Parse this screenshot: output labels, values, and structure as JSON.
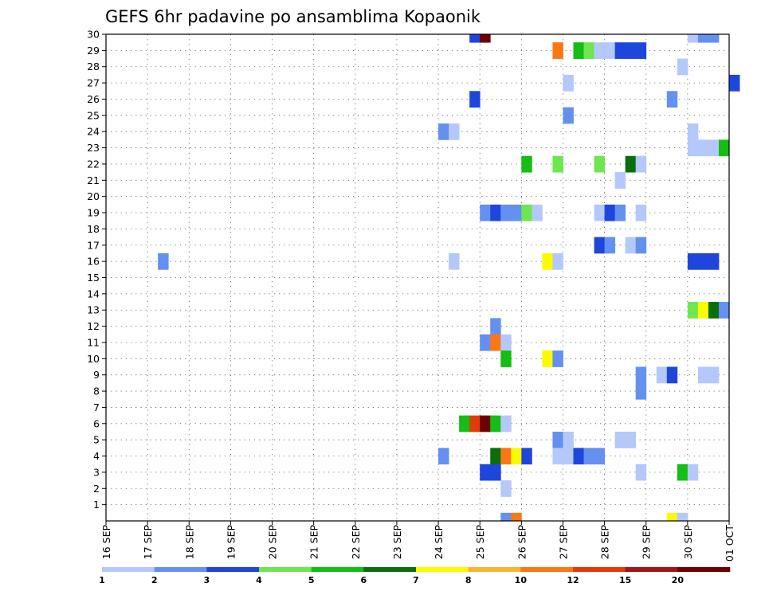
{
  "chart_data": {
    "type": "heatmap",
    "title": "GEFS 6hr padavine po ansamblima Kopaonik",
    "xlabel": "",
    "ylabel": "",
    "x_tick_labels": [
      "16 SEP",
      "17 SEP",
      "18 SEP",
      "19 SEP",
      "20 SEP",
      "21 SEP",
      "22 SEP",
      "23 SEP",
      "24 SEP",
      "25 SEP",
      "26 SEP",
      "27 SEP",
      "28 SEP",
      "29 SEP",
      "30 SEP",
      "01 OCT"
    ],
    "x_range_days": [
      0,
      15
    ],
    "time_step_hours": 6,
    "y_tick_labels": [
      "1",
      "2",
      "3",
      "4",
      "5",
      "6",
      "7",
      "8",
      "9",
      "10",
      "11",
      "12",
      "13",
      "14",
      "15",
      "16",
      "17",
      "18",
      "19",
      "20",
      "21",
      "22",
      "23",
      "24",
      "25",
      "26",
      "27",
      "28",
      "29",
      "30"
    ],
    "y_range": [
      0,
      30
    ],
    "grid": true,
    "legend": {
      "placement": "bottom",
      "boundaries": [
        "1",
        "2",
        "3",
        "4",
        "5",
        "6",
        "7",
        "8",
        "10",
        "12",
        "15",
        "20"
      ],
      "colors": [
        "#b4c8fa",
        "#6490f0",
        "#1e46dc",
        "#6ee650",
        "#14be14",
        "#0a6e0a",
        "#fafa00",
        "#fab432",
        "#fa7814",
        "#e03c0a",
        "#a01414",
        "#6e0000"
      ]
    },
    "cells_note": "each cell: [day offset from 16 SEP 00Z, ensemble member row, color class 0-11]",
    "cells": [
      [
        8.75,
        30,
        2
      ],
      [
        9.0,
        30,
        11
      ],
      [
        14.0,
        30,
        0
      ],
      [
        14.25,
        30,
        1
      ],
      [
        14.5,
        30,
        1
      ],
      [
        10.75,
        29,
        8
      ],
      [
        11.25,
        29,
        4
      ],
      [
        11.5,
        29,
        3
      ],
      [
        11.75,
        29,
        0
      ],
      [
        12.0,
        29,
        0
      ],
      [
        12.25,
        29,
        2
      ],
      [
        12.5,
        29,
        2
      ],
      [
        12.75,
        29,
        2
      ],
      [
        13.75,
        28,
        0
      ],
      [
        11.0,
        27,
        0
      ],
      [
        15.0,
        27,
        2
      ],
      [
        8.75,
        26,
        2
      ],
      [
        13.5,
        26,
        1
      ],
      [
        11.0,
        25,
        1
      ],
      [
        8.0,
        24,
        1
      ],
      [
        8.25,
        24,
        0
      ],
      [
        14.0,
        24,
        0
      ],
      [
        14.0,
        23,
        0
      ],
      [
        14.25,
        23,
        0
      ],
      [
        14.5,
        23,
        0
      ],
      [
        14.75,
        23,
        4
      ],
      [
        10.0,
        22,
        4
      ],
      [
        10.75,
        22,
        3
      ],
      [
        11.75,
        22,
        3
      ],
      [
        12.5,
        22,
        5
      ],
      [
        12.75,
        22,
        0
      ],
      [
        12.25,
        21,
        0
      ],
      [
        9.0,
        19,
        1
      ],
      [
        9.25,
        19,
        2
      ],
      [
        9.5,
        19,
        1
      ],
      [
        9.75,
        19,
        1
      ],
      [
        10.0,
        19,
        3
      ],
      [
        10.25,
        19,
        0
      ],
      [
        11.75,
        19,
        0
      ],
      [
        12.0,
        19,
        2
      ],
      [
        12.25,
        19,
        1
      ],
      [
        12.75,
        19,
        0
      ],
      [
        11.75,
        17,
        2
      ],
      [
        12.0,
        17,
        1
      ],
      [
        12.5,
        17,
        0
      ],
      [
        12.75,
        17,
        1
      ],
      [
        1.25,
        16,
        1
      ],
      [
        8.25,
        16,
        0
      ],
      [
        10.5,
        16,
        6
      ],
      [
        10.75,
        16,
        0
      ],
      [
        14.0,
        16,
        2
      ],
      [
        14.25,
        16,
        2
      ],
      [
        14.5,
        16,
        2
      ],
      [
        14.0,
        13,
        3
      ],
      [
        14.25,
        13,
        6
      ],
      [
        14.5,
        13,
        5
      ],
      [
        14.75,
        13,
        1
      ],
      [
        9.25,
        12,
        1
      ],
      [
        9.0,
        11,
        1
      ],
      [
        9.25,
        11,
        8
      ],
      [
        9.5,
        11,
        0
      ],
      [
        9.5,
        10,
        4
      ],
      [
        10.5,
        10,
        6
      ],
      [
        10.75,
        10,
        1
      ],
      [
        12.75,
        9,
        1
      ],
      [
        13.25,
        9,
        0
      ],
      [
        13.5,
        9,
        2
      ],
      [
        14.25,
        9,
        0
      ],
      [
        14.5,
        9,
        0
      ],
      [
        12.75,
        8,
        1
      ],
      [
        8.5,
        6,
        4
      ],
      [
        8.75,
        6,
        9
      ],
      [
        9.0,
        6,
        11
      ],
      [
        9.25,
        6,
        4
      ],
      [
        9.5,
        6,
        0
      ],
      [
        10.75,
        5,
        1
      ],
      [
        11.0,
        5,
        0
      ],
      [
        12.25,
        5,
        0
      ],
      [
        12.5,
        5,
        0
      ],
      [
        8.0,
        4,
        1
      ],
      [
        9.25,
        4,
        5
      ],
      [
        9.5,
        4,
        8
      ],
      [
        9.75,
        4,
        6
      ],
      [
        10.0,
        4,
        2
      ],
      [
        10.75,
        4,
        0
      ],
      [
        11.0,
        4,
        0
      ],
      [
        11.25,
        4,
        2
      ],
      [
        11.5,
        4,
        1
      ],
      [
        11.75,
        4,
        1
      ],
      [
        9.0,
        3,
        2
      ],
      [
        9.25,
        3,
        2
      ],
      [
        12.75,
        3,
        0
      ],
      [
        13.75,
        3,
        4
      ],
      [
        14.0,
        3,
        0
      ],
      [
        9.5,
        2,
        0
      ],
      [
        9.5,
        0,
        1
      ],
      [
        9.75,
        0,
        8
      ],
      [
        13.5,
        0,
        6
      ],
      [
        13.75,
        0,
        0
      ]
    ]
  }
}
